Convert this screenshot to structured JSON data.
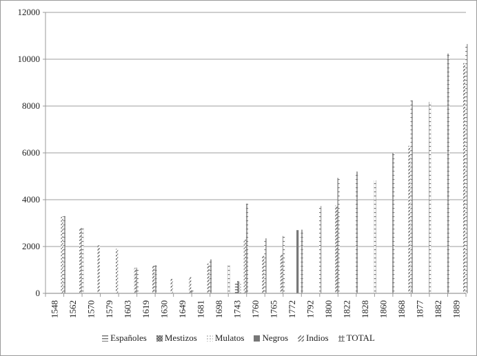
{
  "chart_data": {
    "type": "bar",
    "title": "",
    "xlabel": "",
    "ylabel": "",
    "ylim": [
      0,
      12000
    ],
    "yticks": [
      0,
      2000,
      4000,
      6000,
      8000,
      10000,
      12000
    ],
    "grid": true,
    "legend_position": "bottom",
    "categories": [
      "1548",
      "1562",
      "1570",
      "1579",
      "1603",
      "1619",
      "1630",
      "1649",
      "1681",
      "1698",
      "1743",
      "1760",
      "1765",
      "1772",
      "1792",
      "1800",
      "1822",
      "1828",
      "1860",
      "1868",
      "1877",
      "1882",
      "1889"
    ],
    "series": [
      {
        "name": "Españoles",
        "pattern": "horizontal-lines",
        "values": [
          null,
          null,
          null,
          null,
          null,
          null,
          null,
          null,
          null,
          null,
          450,
          null,
          null,
          null,
          null,
          null,
          null,
          null,
          null,
          null,
          null,
          null,
          null
        ]
      },
      {
        "name": "Mestizos",
        "pattern": "checker",
        "values": [
          null,
          null,
          null,
          null,
          null,
          null,
          null,
          null,
          null,
          null,
          520,
          null,
          null,
          null,
          null,
          null,
          null,
          null,
          null,
          null,
          null,
          null,
          null
        ]
      },
      {
        "name": "Mulatos",
        "pattern": "dots",
        "values": [
          null,
          null,
          null,
          null,
          null,
          null,
          null,
          null,
          null,
          null,
          480,
          null,
          null,
          null,
          null,
          null,
          null,
          null,
          null,
          null,
          null,
          null,
          null
        ]
      },
      {
        "name": "Negros",
        "pattern": "solid",
        "values": [
          null,
          null,
          null,
          null,
          null,
          null,
          null,
          null,
          null,
          null,
          null,
          null,
          null,
          2700,
          null,
          null,
          null,
          null,
          null,
          null,
          null,
          null,
          null
        ]
      },
      {
        "name": "Indios",
        "pattern": "diagonal",
        "values": [
          3280,
          2780,
          2050,
          1900,
          1090,
          1180,
          620,
          700,
          1270,
          null,
          2300,
          1600,
          1650,
          null,
          null,
          3750,
          null,
          null,
          null,
          6300,
          null,
          null,
          9830
        ]
      },
      {
        "name": "TOTAL",
        "pattern": "cross",
        "values": [
          3300,
          2800,
          null,
          null,
          1100,
          1200,
          null,
          130,
          1450,
          1200,
          3830,
          2350,
          2450,
          2720,
          3730,
          4930,
          5200,
          4830,
          6000,
          8240,
          8180,
          10240,
          10650
        ]
      }
    ]
  },
  "legend": [
    {
      "label": "Españoles",
      "icon": "horizontal-lines-swatch"
    },
    {
      "label": "Mestizos",
      "icon": "checker-swatch"
    },
    {
      "label": "Mulatos",
      "icon": "dots-swatch"
    },
    {
      "label": "Negros",
      "icon": "solid-swatch"
    },
    {
      "label": "Indios",
      "icon": "diagonal-swatch"
    },
    {
      "label": "TOTAL",
      "icon": "cross-swatch"
    }
  ],
  "colors": {
    "grid": "#b0b0b0",
    "axis": "#999999",
    "bar": "#777777",
    "text": "#222222"
  }
}
